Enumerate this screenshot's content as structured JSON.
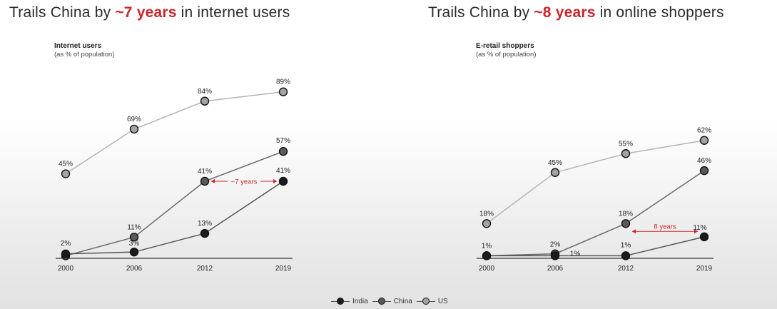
{
  "headings": [
    {
      "prefix": "Trails China by ",
      "highlight": "~7 years",
      "suffix": " in internet users"
    },
    {
      "prefix": "Trails China by ",
      "highlight": "~8 years",
      "suffix": " in online shoppers"
    }
  ],
  "colors": {
    "india": "#1c1c1c",
    "china": "#5a5a5a",
    "us": "#a3a3a3",
    "india_line": "#555555",
    "china_line": "#6a6a6a",
    "us_line": "#b4b4b4",
    "accent": "#c8262c",
    "axis": "#333333"
  },
  "legend": [
    {
      "name": "India",
      "color": "#1c1c1c"
    },
    {
      "name": "China",
      "color": "#5a5a5a"
    },
    {
      "name": "US",
      "color": "#a3a3a3"
    }
  ],
  "chart_data": [
    {
      "type": "line",
      "title": "Internet users",
      "subtitle": "(as % of population)",
      "x": [
        "2000",
        "2006",
        "2012",
        "2019"
      ],
      "ylim": [
        0,
        100
      ],
      "grid": false,
      "series": [
        {
          "name": "India",
          "values": [
            2,
            3,
            13,
            41
          ],
          "labels": [
            "2%",
            "3%",
            "13%",
            "41%"
          ]
        },
        {
          "name": "China",
          "values": [
            1,
            11,
            41,
            57
          ],
          "labels": [
            "",
            "11%",
            "41%",
            "57%"
          ]
        },
        {
          "name": "US",
          "values": [
            45,
            69,
            84,
            89
          ],
          "labels": [
            "45%",
            "69%",
            "84%",
            "89%"
          ]
        }
      ],
      "annotation": {
        "text": "~7 years",
        "from": {
          "series": "China",
          "x": "2012"
        },
        "to": {
          "series": "India",
          "x": "2019"
        }
      }
    },
    {
      "type": "line",
      "title": "E-retail shoppers",
      "subtitle": "(as % of population)",
      "x": [
        "2000",
        "2006",
        "2012",
        "2019"
      ],
      "ylim": [
        0,
        100
      ],
      "grid": false,
      "series": [
        {
          "name": "India",
          "values": [
            1,
            1,
            1,
            11
          ],
          "labels": [
            "1%",
            "1%",
            "1%",
            "11%"
          ]
        },
        {
          "name": "China",
          "values": [
            1,
            2,
            18,
            46
          ],
          "labels": [
            "",
            "2%",
            "18%",
            "46%"
          ]
        },
        {
          "name": "US",
          "values": [
            18,
            45,
            55,
            62
          ],
          "labels": [
            "18%",
            "45%",
            "55%",
            "62%"
          ]
        }
      ],
      "annotation": {
        "text": "8 years",
        "from": {
          "series": "China",
          "x": "2012"
        },
        "to": {
          "series": "India",
          "x": "2019"
        }
      }
    }
  ]
}
